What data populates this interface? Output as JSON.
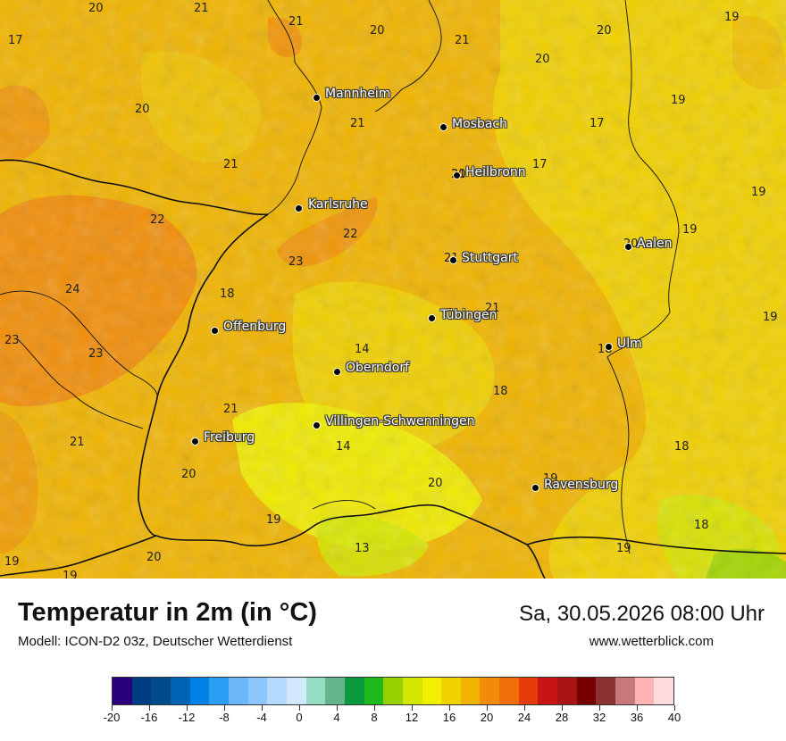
{
  "title": "Temperatur in 2m (in °C)",
  "model": "Modell: ICON-D2 03z, Deutscher Wetterdienst",
  "datetime": "Sa, 30.05.2026 08:00 Uhr",
  "website": "www.wetterblick.com",
  "cities": [
    {
      "name": "Mannheim"
    },
    {
      "name": "Mosbach"
    },
    {
      "name": "Heilbronn"
    },
    {
      "name": "Karlsruhe"
    },
    {
      "name": "Stuttgart"
    },
    {
      "name": "Aalen"
    },
    {
      "name": "Tübingen"
    },
    {
      "name": "Offenburg"
    },
    {
      "name": "Ulm"
    },
    {
      "name": "Oberndorf"
    },
    {
      "name": "Villingen-Schwenningen"
    },
    {
      "name": "Freiburg"
    },
    {
      "name": "Ravensburg"
    }
  ],
  "map_values": [
    "20",
    "21",
    "21",
    "20",
    "21",
    "20",
    "19",
    "17",
    "20",
    "19",
    "21",
    "17",
    "20",
    "17",
    "21",
    "20",
    "19",
    "19",
    "22",
    "22",
    "23",
    "24",
    "18",
    "21",
    "19",
    "23",
    "23",
    "14",
    "21",
    "18",
    "18",
    "21",
    "21",
    "14",
    "18",
    "20",
    "20",
    "19",
    "19",
    "13",
    "20",
    "18",
    "19",
    "19",
    "19",
    "20",
    "21"
  ],
  "colorbar": {
    "colors": [
      "#2b007f",
      "#003c80",
      "#004a8c",
      "#0064b4",
      "#0082e6",
      "#2a9df5",
      "#6cb6fa",
      "#8cc6fc",
      "#b4daff",
      "#d2e8ff",
      "#96dcc3",
      "#64b48c",
      "#0a9a3c",
      "#1eb91e",
      "#96d200",
      "#d2e600",
      "#f0f000",
      "#f0d200",
      "#f0b400",
      "#f08c0a",
      "#f06e0a",
      "#e63c0a",
      "#c81414",
      "#aa1414",
      "#780000",
      "#8c3232",
      "#c87878",
      "#ffb4b4",
      "#ffdcdc"
    ],
    "tick_labels": [
      "-20",
      "-16",
      "-12",
      "-8",
      "-4",
      "0",
      "4",
      "8",
      "12",
      "16",
      "20",
      "24",
      "28",
      "32",
      "36",
      "40"
    ]
  }
}
